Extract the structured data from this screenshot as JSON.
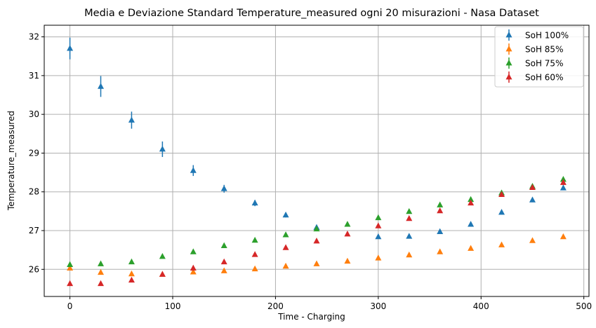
{
  "chart_data": {
    "type": "scatter",
    "title": "Media e Deviazione Standard Temperature_measured  ogni 20 misurazioni - Nasa Dataset",
    "xlabel": "Time - Charging",
    "ylabel": "Temperature_measured",
    "xlim": [
      -25,
      505
    ],
    "ylim": [
      25.3,
      32.3
    ],
    "xticks": [
      0,
      100,
      200,
      300,
      400,
      500
    ],
    "yticks": [
      26,
      27,
      28,
      29,
      30,
      31,
      32
    ],
    "grid": true,
    "legend_position": "top-right",
    "x": [
      0,
      30,
      60,
      90,
      120,
      150,
      180,
      210,
      240,
      270,
      300,
      330,
      360,
      390,
      420,
      450,
      480
    ],
    "series": [
      {
        "name": "SoH 100%",
        "color": "#1f77b4",
        "values": [
          31.7,
          30.72,
          29.85,
          29.1,
          28.55,
          28.08,
          27.71,
          27.4,
          27.08,
          null,
          26.84,
          26.85,
          26.97,
          27.16,
          27.47,
          27.79,
          28.1
        ],
        "errors": [
          0.28,
          0.27,
          0.22,
          0.2,
          0.14,
          0.1,
          0.08,
          0.06,
          0.05,
          null,
          0.04,
          0.04,
          0.04,
          0.05,
          0.05,
          0.05,
          0.05
        ]
      },
      {
        "name": "SoH 85%",
        "color": "#ff7f0e",
        "values": [
          26.03,
          25.92,
          25.88,
          25.87,
          25.93,
          25.96,
          26.01,
          26.08,
          26.14,
          26.21,
          26.29,
          26.37,
          26.45,
          26.54,
          26.63,
          26.74,
          26.84
        ],
        "errors": [
          0.04,
          0.03,
          0.03,
          0.03,
          0.03,
          0.03,
          0.03,
          0.03,
          0.03,
          0.03,
          0.03,
          0.03,
          0.03,
          0.03,
          0.03,
          0.03,
          0.03
        ]
      },
      {
        "name": "SoH 75%",
        "color": "#2ca02c",
        "values": [
          26.12,
          26.14,
          26.19,
          26.33,
          26.45,
          26.61,
          26.75,
          26.89,
          27.04,
          27.16,
          27.33,
          27.49,
          27.66,
          27.8,
          27.97,
          28.14,
          28.32
        ],
        "errors": [
          0.04,
          0.03,
          0.03,
          0.03,
          0.03,
          0.03,
          0.03,
          0.03,
          0.03,
          0.03,
          0.03,
          0.03,
          0.03,
          0.03,
          0.03,
          0.03,
          0.03
        ]
      },
      {
        "name": "SoH 60%",
        "color": "#d62728",
        "values": [
          25.63,
          25.63,
          25.72,
          25.87,
          26.03,
          26.19,
          26.38,
          26.56,
          26.73,
          26.91,
          27.12,
          27.31,
          27.51,
          27.71,
          27.93,
          28.11,
          28.24
        ],
        "errors": [
          0.04,
          0.03,
          0.03,
          0.03,
          0.03,
          0.03,
          0.03,
          0.03,
          0.03,
          0.03,
          0.03,
          0.03,
          0.03,
          0.03,
          0.03,
          0.03,
          0.03
        ]
      }
    ]
  }
}
